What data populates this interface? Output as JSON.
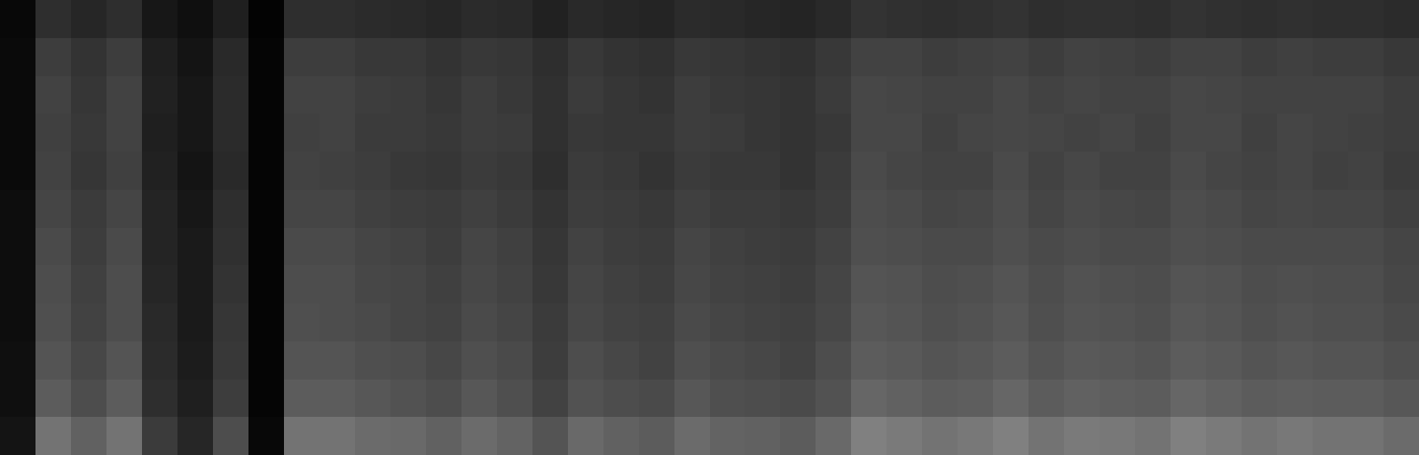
{
  "chart_data": {
    "type": "heatmap",
    "tick_labels": false,
    "zlim": [
      0,
      1
    ],
    "cells": [
      [
        0.03,
        0.18,
        0.15,
        0.18,
        0.09,
        0.06,
        0.12,
        0.01,
        0.18,
        0.18,
        0.17,
        0.16,
        0.15,
        0.17,
        0.16,
        0.13,
        0.16,
        0.15,
        0.14,
        0.17,
        0.16,
        0.15,
        0.14,
        0.16,
        0.2,
        0.19,
        0.18,
        0.19,
        0.2,
        0.18,
        0.19,
        0.19,
        0.18,
        0.2,
        0.19,
        0.18,
        0.19,
        0.18,
        0.18,
        0.17
      ],
      [
        0.04,
        0.24,
        0.2,
        0.24,
        0.12,
        0.08,
        0.16,
        0.02,
        0.24,
        0.24,
        0.22,
        0.22,
        0.2,
        0.22,
        0.21,
        0.18,
        0.22,
        0.2,
        0.19,
        0.22,
        0.21,
        0.2,
        0.19,
        0.22,
        0.26,
        0.26,
        0.24,
        0.25,
        0.26,
        0.24,
        0.26,
        0.25,
        0.24,
        0.26,
        0.26,
        0.24,
        0.25,
        0.24,
        0.24,
        0.22
      ],
      [
        0.04,
        0.26,
        0.21,
        0.26,
        0.13,
        0.09,
        0.17,
        0.02,
        0.26,
        0.26,
        0.24,
        0.23,
        0.21,
        0.24,
        0.22,
        0.19,
        0.23,
        0.21,
        0.2,
        0.24,
        0.22,
        0.21,
        0.2,
        0.23,
        0.28,
        0.27,
        0.26,
        0.26,
        0.28,
        0.26,
        0.27,
        0.26,
        0.26,
        0.28,
        0.27,
        0.26,
        0.26,
        0.26,
        0.26,
        0.24
      ],
      [
        0.04,
        0.25,
        0.22,
        0.26,
        0.12,
        0.09,
        0.17,
        0.02,
        0.25,
        0.26,
        0.23,
        0.23,
        0.22,
        0.24,
        0.23,
        0.19,
        0.22,
        0.21,
        0.21,
        0.24,
        0.23,
        0.21,
        0.2,
        0.22,
        0.28,
        0.28,
        0.25,
        0.27,
        0.28,
        0.27,
        0.26,
        0.27,
        0.25,
        0.28,
        0.28,
        0.25,
        0.27,
        0.26,
        0.25,
        0.24
      ],
      [
        0.04,
        0.26,
        0.21,
        0.25,
        0.13,
        0.08,
        0.16,
        0.02,
        0.26,
        0.25,
        0.24,
        0.22,
        0.21,
        0.23,
        0.22,
        0.18,
        0.23,
        0.22,
        0.2,
        0.23,
        0.22,
        0.22,
        0.2,
        0.23,
        0.29,
        0.27,
        0.26,
        0.26,
        0.29,
        0.26,
        0.28,
        0.26,
        0.26,
        0.29,
        0.27,
        0.26,
        0.27,
        0.25,
        0.26,
        0.23
      ],
      [
        0.05,
        0.27,
        0.23,
        0.27,
        0.14,
        0.09,
        0.18,
        0.02,
        0.27,
        0.27,
        0.25,
        0.24,
        0.23,
        0.25,
        0.23,
        0.2,
        0.24,
        0.23,
        0.22,
        0.25,
        0.23,
        0.23,
        0.22,
        0.24,
        0.3,
        0.29,
        0.27,
        0.28,
        0.3,
        0.27,
        0.29,
        0.28,
        0.27,
        0.3,
        0.29,
        0.27,
        0.28,
        0.27,
        0.27,
        0.25
      ],
      [
        0.05,
        0.29,
        0.24,
        0.29,
        0.14,
        0.1,
        0.19,
        0.02,
        0.29,
        0.29,
        0.27,
        0.26,
        0.24,
        0.27,
        0.25,
        0.21,
        0.26,
        0.24,
        0.23,
        0.27,
        0.25,
        0.24,
        0.23,
        0.26,
        0.31,
        0.3,
        0.29,
        0.29,
        0.31,
        0.29,
        0.3,
        0.29,
        0.29,
        0.31,
        0.3,
        0.29,
        0.29,
        0.29,
        0.29,
        0.27
      ],
      [
        0.05,
        0.3,
        0.25,
        0.3,
        0.15,
        0.1,
        0.2,
        0.02,
        0.3,
        0.3,
        0.28,
        0.27,
        0.25,
        0.28,
        0.26,
        0.22,
        0.27,
        0.25,
        0.24,
        0.28,
        0.26,
        0.25,
        0.24,
        0.27,
        0.33,
        0.32,
        0.3,
        0.31,
        0.33,
        0.3,
        0.32,
        0.31,
        0.3,
        0.33,
        0.32,
        0.3,
        0.31,
        0.3,
        0.3,
        0.28
      ],
      [
        0.05,
        0.31,
        0.26,
        0.3,
        0.16,
        0.1,
        0.21,
        0.02,
        0.31,
        0.3,
        0.29,
        0.27,
        0.26,
        0.29,
        0.27,
        0.23,
        0.28,
        0.26,
        0.25,
        0.29,
        0.27,
        0.26,
        0.25,
        0.28,
        0.34,
        0.33,
        0.31,
        0.32,
        0.34,
        0.31,
        0.33,
        0.32,
        0.31,
        0.34,
        0.33,
        0.31,
        0.32,
        0.31,
        0.31,
        0.29
      ],
      [
        0.06,
        0.33,
        0.28,
        0.33,
        0.17,
        0.11,
        0.22,
        0.02,
        0.33,
        0.33,
        0.31,
        0.3,
        0.28,
        0.31,
        0.29,
        0.24,
        0.3,
        0.28,
        0.26,
        0.31,
        0.29,
        0.28,
        0.26,
        0.3,
        0.36,
        0.35,
        0.33,
        0.34,
        0.36,
        0.33,
        0.35,
        0.34,
        0.33,
        0.36,
        0.35,
        0.33,
        0.34,
        0.33,
        0.33,
        0.31
      ],
      [
        0.06,
        0.36,
        0.3,
        0.36,
        0.18,
        0.12,
        0.24,
        0.02,
        0.36,
        0.36,
        0.34,
        0.32,
        0.3,
        0.34,
        0.31,
        0.26,
        0.32,
        0.3,
        0.29,
        0.34,
        0.31,
        0.3,
        0.29,
        0.32,
        0.4,
        0.38,
        0.36,
        0.37,
        0.4,
        0.36,
        0.38,
        0.37,
        0.36,
        0.4,
        0.38,
        0.36,
        0.37,
        0.36,
        0.36,
        0.34
      ],
      [
        0.08,
        0.45,
        0.38,
        0.45,
        0.23,
        0.15,
        0.3,
        0.03,
        0.45,
        0.45,
        0.42,
        0.41,
        0.38,
        0.42,
        0.39,
        0.33,
        0.41,
        0.38,
        0.36,
        0.42,
        0.39,
        0.38,
        0.36,
        0.41,
        0.5,
        0.48,
        0.45,
        0.47,
        0.5,
        0.45,
        0.48,
        0.47,
        0.45,
        0.5,
        0.48,
        0.45,
        0.47,
        0.45,
        0.45,
        0.42
      ]
    ]
  }
}
